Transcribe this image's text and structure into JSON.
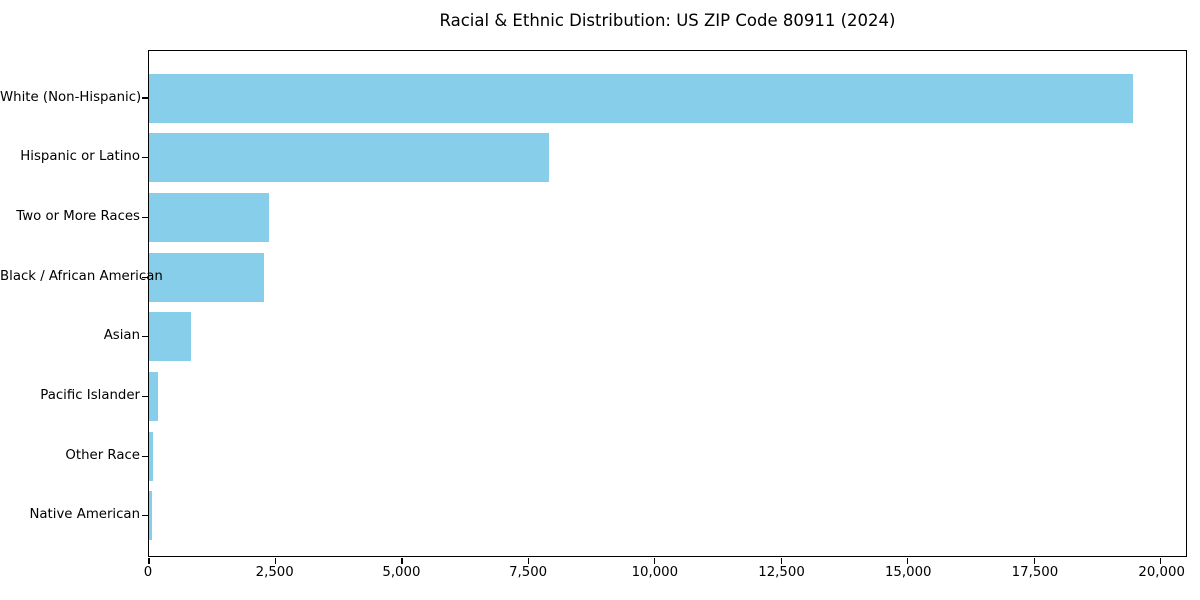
{
  "chart_data": {
    "type": "bar",
    "orientation": "horizontal",
    "title": "Racial & Ethnic Distribution: US ZIP Code 80911 (2024)",
    "categories": [
      "White (Non-Hispanic)",
      "Hispanic or Latino",
      "Two or More Races",
      "Black / African American",
      "Asian",
      "Pacific Islander",
      "Other Race",
      "Native American"
    ],
    "values": [
      19460,
      7910,
      2370,
      2270,
      840,
      185,
      80,
      55
    ],
    "xlabel": "",
    "ylabel": "",
    "xlim": [
      0,
      20500
    ],
    "xticks": [
      0,
      2500,
      5000,
      7500,
      10000,
      12500,
      15000,
      17500,
      20000
    ],
    "xtick_labels": [
      "0",
      "2,500",
      "5,000",
      "7,500",
      "10,000",
      "12,500",
      "15,000",
      "17,500",
      "20,000"
    ],
    "bar_color": "#87CEEB",
    "grid": false,
    "legend_position": "none",
    "background_color": "#ffffff",
    "spine_color": "#000000"
  }
}
